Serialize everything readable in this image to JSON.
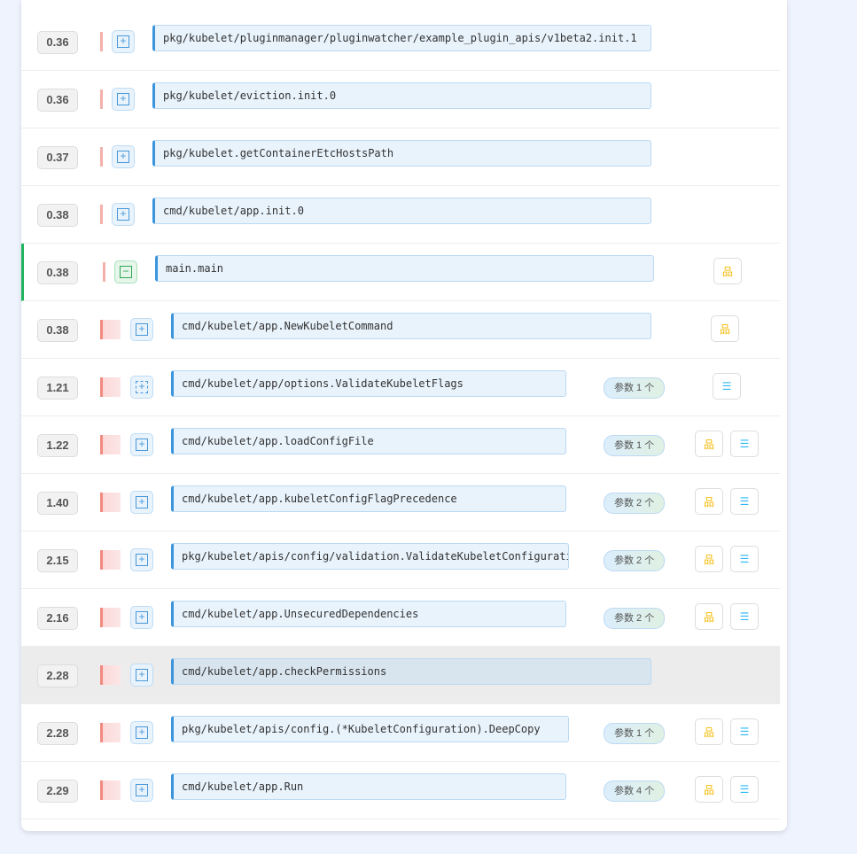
{
  "rows": [
    {
      "time": "0.36",
      "name": "pkg/kubelet/pluginmanager/pluginwatcher/example_plugin_apis/v1beta2.init.1",
      "level": 0,
      "toggle": "plus",
      "badge": null,
      "tree": false,
      "list": false
    },
    {
      "time": "0.36",
      "name": "pkg/kubelet/eviction.init.0",
      "level": 0,
      "toggle": "plus",
      "badge": null,
      "tree": false,
      "list": false
    },
    {
      "time": "0.37",
      "name": "pkg/kubelet.getContainerEtcHostsPath",
      "level": 0,
      "toggle": "plus",
      "badge": null,
      "tree": false,
      "list": false
    },
    {
      "time": "0.38",
      "name": "cmd/kubelet/app.init.0",
      "level": 0,
      "toggle": "plus",
      "badge": null,
      "tree": false,
      "list": false
    },
    {
      "time": "0.38",
      "name": "main.main",
      "level": 0,
      "toggle": "minus",
      "selected": true,
      "badge": null,
      "tree": true,
      "list": false
    },
    {
      "time": "0.38",
      "name": "cmd/kubelet/app.NewKubeletCommand",
      "level": 1,
      "toggle": "plus",
      "badge": null,
      "tree": true,
      "list": false
    },
    {
      "time": "1.21",
      "name": "cmd/kubelet/app/options.ValidateKubeletFlags",
      "level": 1,
      "toggle": "dash",
      "badge": "参数 1 个",
      "tree": false,
      "list": true
    },
    {
      "time": "1.22",
      "name": "cmd/kubelet/app.loadConfigFile",
      "level": 1,
      "toggle": "plus",
      "badge": "参数 1 个",
      "tree": true,
      "list": true
    },
    {
      "time": "1.40",
      "name": "cmd/kubelet/app.kubeletConfigFlagPrecedence",
      "level": 1,
      "toggle": "plus",
      "badge": "参数 2 个",
      "tree": true,
      "list": true
    },
    {
      "time": "2.15",
      "name": "pkg/kubelet/apis/config/validation.ValidateKubeletConfiguration",
      "level": 1,
      "toggle": "plus",
      "badge": "参数 2 个",
      "tree": true,
      "list": true
    },
    {
      "time": "2.16",
      "name": "cmd/kubelet/app.UnsecuredDependencies",
      "level": 1,
      "toggle": "plus",
      "badge": "参数 2 个",
      "tree": true,
      "list": true
    },
    {
      "time": "2.28",
      "name": "cmd/kubelet/app.checkPermissions",
      "level": 1,
      "toggle": "plus",
      "hover": true,
      "badge": null,
      "tree": false,
      "list": false
    },
    {
      "time": "2.28",
      "name": "pkg/kubelet/apis/config.(*KubeletConfiguration).DeepCopy",
      "level": 1,
      "toggle": "plus",
      "badge": "参数 1 个",
      "tree": true,
      "list": true
    },
    {
      "time": "2.29",
      "name": "cmd/kubelet/app.Run",
      "level": 1,
      "toggle": "plus",
      "badge": "参数 4 个",
      "tree": true,
      "list": true
    }
  ],
  "icons": {
    "tree": "sitemap-icon",
    "list": "list-icon"
  },
  "colors": {
    "tree": "#f5b800",
    "list": "#2db7f5",
    "selected": "#22b35e"
  }
}
